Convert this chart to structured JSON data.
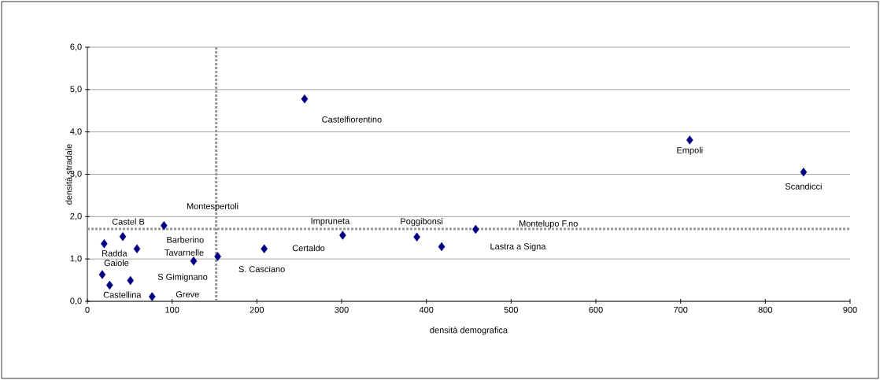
{
  "chart_data": {
    "type": "scatter",
    "xlabel": "densità demografica",
    "ylabel": "densità stradale",
    "x": [
      19.8,
      41.8,
      58.5,
      90.4,
      125.4,
      153.8,
      17.6,
      26.3,
      50.8,
      76.4,
      208.7,
      256.3,
      301.3,
      388.8,
      418,
      458.2,
      710.8,
      845.1
    ],
    "series": [
      {
        "color": "#000080",
        "values": [
          1.36,
          1.53,
          1.24,
          1.79,
          0.95,
          1.06,
          0.63,
          0.38,
          0.49,
          0.11,
          1.24,
          4.78,
          1.56,
          1.52,
          1.29,
          1.7,
          3.81,
          3.05
        ]
      }
    ],
    "marker": "diamond",
    "xlim": [
      0,
      900
    ],
    "xticks": [
      0,
      100,
      200,
      300,
      400,
      500,
      600,
      700,
      800,
      900
    ],
    "ylim": [
      0,
      6
    ],
    "yticks": [
      {
        "value": 0,
        "label": "0,0"
      },
      {
        "value": 1,
        "label": "1,0"
      },
      {
        "value": 2,
        "label": "2,0"
      },
      {
        "value": 3,
        "label": "3,0"
      },
      {
        "value": 4,
        "label": "4,0"
      },
      {
        "value": 5,
        "label": "5,0"
      },
      {
        "value": 6,
        "label": "6,0"
      }
    ],
    "grid": "y",
    "ref_lines": [
      {
        "axis": "x",
        "value": 152,
        "color": "#999999",
        "line_style": "dotted"
      },
      {
        "axis": "y",
        "value": 1.71,
        "color": "#999999",
        "line_style": "dotted"
      }
    ],
    "annotations": [
      {
        "text": "Castelfiorentino",
        "x": 256.3,
        "y": 4.78
      },
      {
        "text": "Empoli",
        "x": 710.8,
        "y": 3.81
      },
      {
        "text": "Scandicci",
        "x": 845.1,
        "y": 3.05
      },
      "Montespertoli",
      {
        "text": "Castel B",
        "x": 41.8,
        "y": 1.53
      },
      {
        "text": "Barberino",
        "x": 90.4,
        "y": 1.79
      },
      {
        "text": "Radda",
        "x": 19.8,
        "y": 1.36
      },
      {
        "text": "Tavarnelle",
        "x": 125.4,
        "y": 0.95
      },
      {
        "text": "Gaiole",
        "x": 17.6,
        "y": 0.63
      },
      "S Gimignano",
      {
        "text": "Castellina",
        "x": 26.3,
        "y": 0.38
      },
      {
        "text": "Greve",
        "x": 76.4,
        "y": 0.11
      },
      {
        "text": "S. Casciano",
        "x": 153.8,
        "y": 1.06
      },
      "Certaldo",
      {
        "text": "Impruneta",
        "x": 301.3,
        "y": 1.56
      },
      {
        "text": "Poggibonsi",
        "x": 388.8,
        "y": 1.52
      },
      "Lastra a Signa",
      "Montelupo F.no"
    ]
  }
}
